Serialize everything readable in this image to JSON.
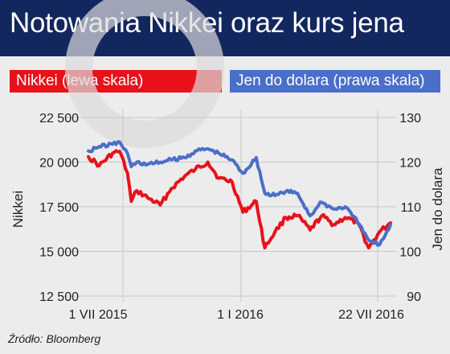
{
  "header": {
    "title": "Notowania Nikkei oraz kurs jena"
  },
  "legend": {
    "nikkei_label": "Nikkei (lewa skala)",
    "yen_label": "Jen do dolara (prawa skala)"
  },
  "footer": {
    "source": "Źródło: Bloomberg"
  },
  "colors": {
    "header_bg": "#13275f",
    "nikkei": "#e8111a",
    "yen": "#4a6fc8",
    "background": "#ececec"
  },
  "chart_data": {
    "type": "line",
    "title": "Notowania Nikkei oraz kurs jena",
    "xlabel": "",
    "ylabel": "Nikkei",
    "y2label": "Jen do dolara",
    "x_ticks": [
      "1 VII 2015",
      "1 I 2016",
      "22 VII 2016"
    ],
    "ylim": [
      12500,
      22500
    ],
    "y_ticks": [
      "22 500",
      "20 000",
      "17 500",
      "15 000",
      "12 500"
    ],
    "y2lim": [
      90,
      130
    ],
    "y2_ticks": [
      "130",
      "120",
      "110",
      "100",
      "90"
    ],
    "grid": true,
    "legend": "top",
    "x": [
      "2015-07-01",
      "2015-07-15",
      "2015-08-01",
      "2015-08-10",
      "2015-08-20",
      "2015-08-25",
      "2015-09-01",
      "2015-09-15",
      "2015-10-01",
      "2015-10-15",
      "2015-11-01",
      "2015-11-15",
      "2015-12-01",
      "2015-12-15",
      "2016-01-01",
      "2016-01-15",
      "2016-02-01",
      "2016-02-12",
      "2016-02-25",
      "2016-03-10",
      "2016-03-25",
      "2016-04-10",
      "2016-04-25",
      "2016-05-10",
      "2016-05-25",
      "2016-06-10",
      "2016-06-24",
      "2016-07-08",
      "2016-07-22"
    ],
    "series": [
      {
        "name": "Nikkei (lewa skala)",
        "axis": "left",
        "values": [
          20300,
          19800,
          20500,
          20600,
          19400,
          17800,
          18400,
          18000,
          17600,
          18500,
          19200,
          19600,
          20000,
          19100,
          18900,
          17200,
          17800,
          15200,
          16100,
          16900,
          17000,
          16200,
          17000,
          16500,
          16900,
          16600,
          15200,
          16100,
          16600
        ]
      },
      {
        "name": "Jen do dolara (prawa skala)",
        "axis": "right",
        "values": [
          122.5,
          123.5,
          124.0,
          124.5,
          122.0,
          119.0,
          120.0,
          119.5,
          120.0,
          120.5,
          121.0,
          122.5,
          123.0,
          122.0,
          120.5,
          117.5,
          121.0,
          113.0,
          112.5,
          113.5,
          113.0,
          108.0,
          111.0,
          109.5,
          110.0,
          106.5,
          102.5,
          101.5,
          106.0
        ]
      }
    ]
  }
}
